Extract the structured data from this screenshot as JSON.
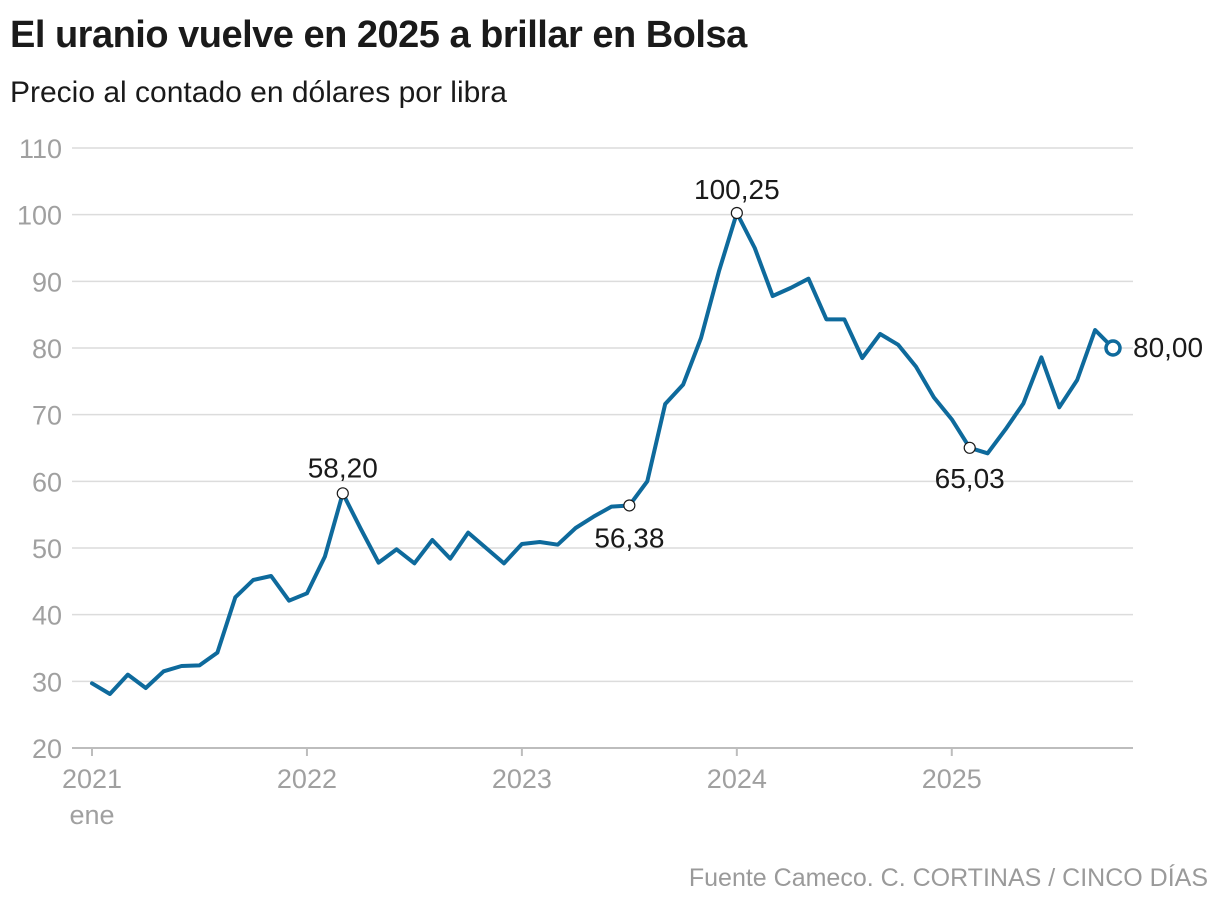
{
  "title": "El uranio vuelve en 2025 a brillar en Bolsa",
  "subtitle": "Precio al contado en dólares por libra",
  "source": "Fuente Cameco. C. CORTINAS / CINCO DÍAS",
  "chart_data": {
    "type": "line",
    "title": "El uranio vuelve en 2025 a brillar en Bolsa",
    "subtitle": "Precio al contado en dólares por libra",
    "xlabel": "",
    "ylabel": "",
    "ylim": [
      20,
      110
    ],
    "yticks": [
      20,
      30,
      40,
      50,
      60,
      70,
      80,
      90,
      100,
      110
    ],
    "xtick_labels": [
      "2021",
      "2022",
      "2023",
      "2024",
      "2025"
    ],
    "xtick_sublabel": "ene",
    "grid": true,
    "line_color": "#0e6a9c",
    "series": [
      {
        "x": [
          "2021-01",
          "2021-02",
          "2021-03",
          "2021-04",
          "2021-05",
          "2021-06",
          "2021-07",
          "2021-08",
          "2021-09",
          "2021-10",
          "2021-11",
          "2021-12",
          "2022-01",
          "2022-02",
          "2022-03",
          "2022-04",
          "2022-05",
          "2022-06",
          "2022-07",
          "2022-08",
          "2022-09",
          "2022-10",
          "2022-11",
          "2022-12",
          "2023-01",
          "2023-02",
          "2023-03",
          "2023-04",
          "2023-05",
          "2023-06",
          "2023-07",
          "2023-08",
          "2023-09",
          "2023-10",
          "2023-11",
          "2023-12",
          "2024-01",
          "2024-02",
          "2024-03",
          "2024-04",
          "2024-05",
          "2024-06",
          "2024-07",
          "2024-08",
          "2024-09",
          "2024-10",
          "2024-11",
          "2024-12",
          "2025-01",
          "2025-02",
          "2025-03",
          "2025-04",
          "2025-05",
          "2025-06",
          "2025-07",
          "2025-08",
          "2025-09",
          "2025-10"
        ],
        "values": [
          29.7,
          28.1,
          31.0,
          29.0,
          31.5,
          32.3,
          32.4,
          34.3,
          42.6,
          45.2,
          45.8,
          42.1,
          43.2,
          48.7,
          58.2,
          52.9,
          47.8,
          49.8,
          47.7,
          51.2,
          48.4,
          52.3,
          50.0,
          47.7,
          50.6,
          50.9,
          50.5,
          53.0,
          54.7,
          56.2,
          56.38,
          60.0,
          71.6,
          74.5,
          81.5,
          91.5,
          100.25,
          95.0,
          87.8,
          89.0,
          90.4,
          84.3,
          84.3,
          78.5,
          82.1,
          80.5,
          77.2,
          72.6,
          69.3,
          65.03,
          64.2,
          67.8,
          71.7,
          78.6,
          71.1,
          75.2,
          82.7,
          80.0
        ]
      }
    ],
    "annotations": [
      {
        "x": "2022-03",
        "value": 58.2,
        "label": "58,20"
      },
      {
        "x": "2023-07",
        "value": 56.38,
        "label": "56,38"
      },
      {
        "x": "2024-01",
        "value": 100.25,
        "label": "100,25"
      },
      {
        "x": "2025-02",
        "value": 65.03,
        "label": "65,03"
      },
      {
        "x": "2025-10",
        "value": 80.0,
        "label": "80,00"
      }
    ]
  }
}
